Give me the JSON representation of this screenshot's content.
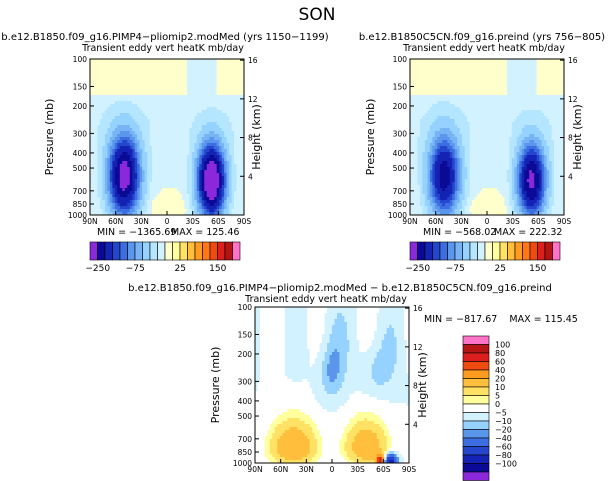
{
  "page_title": "SON",
  "colors": {
    "pale_yellow": "#ffffcc",
    "white": "#ffffff",
    "blues": [
      "#d2f2ff",
      "#b4e6ff",
      "#96d2ff",
      "#78b4f5",
      "#5a96eb",
      "#3c6ee1",
      "#2346cd",
      "#1423b4",
      "#0a0a96"
    ],
    "reds": [
      "#ffff9b",
      "#ffe164",
      "#ffbe3c",
      "#ff9b1e",
      "#ff7814",
      "#f04b0f",
      "#dc1e1e",
      "#b41414",
      "#8c0a0a",
      "#ff73c8"
    ],
    "purple": "#8c28dc"
  },
  "chart_data": [
    {
      "id": "panel_left",
      "type": "contour",
      "title": "b.e12.B1850.f09_g16.PIMP4−pliomip2.modMed (yrs 1150−1199)",
      "subtitle": "Transient eddy vert heatK mb/day",
      "xlabel": "",
      "ylabel": "Pressure (mb)",
      "y2label": "Height (km)",
      "x_ticks": [
        "90N",
        "60N",
        "30N",
        "0",
        "30S",
        "60S",
        "90S"
      ],
      "x_range": [
        90,
        -90
      ],
      "y_ticks": [
        "100",
        "150",
        "200",
        "300",
        "400",
        "500",
        "700",
        "850",
        "1000"
      ],
      "y_range_mb": [
        100,
        1000
      ],
      "y2_ticks": [
        "16",
        "12",
        "8",
        "4"
      ],
      "min_label": "MIN = −1365.69",
      "max_label": "MAX = 125.46",
      "min": -1365.69,
      "max": 125.46,
      "colorbar": {
        "orientation": "horizontal",
        "tick_labels": [
          "−250",
          "−75",
          "25",
          "150"
        ],
        "levels": [
          -250,
          -200,
          -150,
          -125,
          -100,
          -75,
          -50,
          -25,
          -10,
          0,
          10,
          25,
          50,
          75,
          100,
          125,
          150,
          200,
          250
        ]
      },
      "features": [
        {
          "kind": "min",
          "lat": 52,
          "p": 560,
          "note": "northern mid-latitude negative column"
        },
        {
          "kind": "min",
          "lat": -55,
          "p": 520,
          "note": "southern mid-latitude negative column"
        }
      ]
    },
    {
      "id": "panel_right",
      "type": "contour",
      "title": "b.e12.B1850C5CN.f09_g16.preind (yrs 756−805)",
      "subtitle": "Transient eddy vert heatK mb/day",
      "xlabel": "",
      "ylabel": "Pressure (mb)",
      "y2label": "Height (km)",
      "x_ticks": [
        "90N",
        "60N",
        "30N",
        "0",
        "30S",
        "60S",
        "90S"
      ],
      "x_range": [
        90,
        -90
      ],
      "y_ticks": [
        "100",
        "150",
        "200",
        "300",
        "400",
        "500",
        "700",
        "850",
        "1000"
      ],
      "y_range_mb": [
        100,
        1000
      ],
      "y2_ticks": [
        "16",
        "12",
        "8",
        "4"
      ],
      "min_label": "MIN = −568.02",
      "max_label": "MAX = 222.32",
      "min": -568.02,
      "max": 222.32,
      "colorbar": {
        "orientation": "horizontal",
        "tick_labels": [
          "−250",
          "−75",
          "25",
          "150"
        ],
        "levels": [
          -250,
          -200,
          -150,
          -125,
          -100,
          -75,
          -50,
          -25,
          -10,
          0,
          10,
          25,
          50,
          75,
          100,
          125,
          150,
          200,
          250
        ]
      },
      "features": [
        {
          "kind": "min",
          "lat": 52,
          "p": 560
        },
        {
          "kind": "min",
          "lat": -55,
          "p": 560
        }
      ]
    },
    {
      "id": "panel_diff",
      "type": "contour",
      "title": "b.e12.B1850.f09_g16.PIMP4−pliomip2.modMed − b.e12.B1850C5CN.f09_g16.preind",
      "subtitle": "Transient eddy vert heatK mb/day",
      "xlabel": "",
      "ylabel": "Pressure (mb)",
      "y2label": "Height (km)",
      "x_ticks": [
        "90N",
        "60N",
        "30N",
        "0",
        "30S",
        "60S",
        "90S"
      ],
      "x_range": [
        90,
        -90
      ],
      "y_ticks": [
        "100",
        "150",
        "200",
        "300",
        "400",
        "500",
        "700",
        "850",
        "1000"
      ],
      "y_range_mb": [
        100,
        1000
      ],
      "y2_ticks": [
        "16",
        "12",
        "8",
        "4"
      ],
      "minmax_label": "MIN = −817.67    MAX = 115.45",
      "min": -817.67,
      "max": 115.45,
      "colorbar": {
        "orientation": "vertical",
        "tick_labels": [
          "100",
          "80",
          "60",
          "40",
          "20",
          "10",
          "5",
          "0",
          "−5",
          "−10",
          "−20",
          "−40",
          "−60",
          "−80",
          "−100"
        ],
        "levels": [
          100,
          80,
          60,
          40,
          20,
          10,
          5,
          0,
          -5,
          -10,
          -20,
          -40,
          -60,
          -80,
          -100
        ]
      },
      "features": [
        {
          "kind": "max",
          "lat": 50,
          "p": 700,
          "note": "positive dome over northern mid-latitudes"
        },
        {
          "kind": "max",
          "lat": -45,
          "p": 700,
          "note": "positive dome over southern mid-latitudes"
        },
        {
          "kind": "min",
          "lat": -70,
          "p": 950,
          "note": "strong negative near Antarctic surface"
        }
      ]
    }
  ]
}
